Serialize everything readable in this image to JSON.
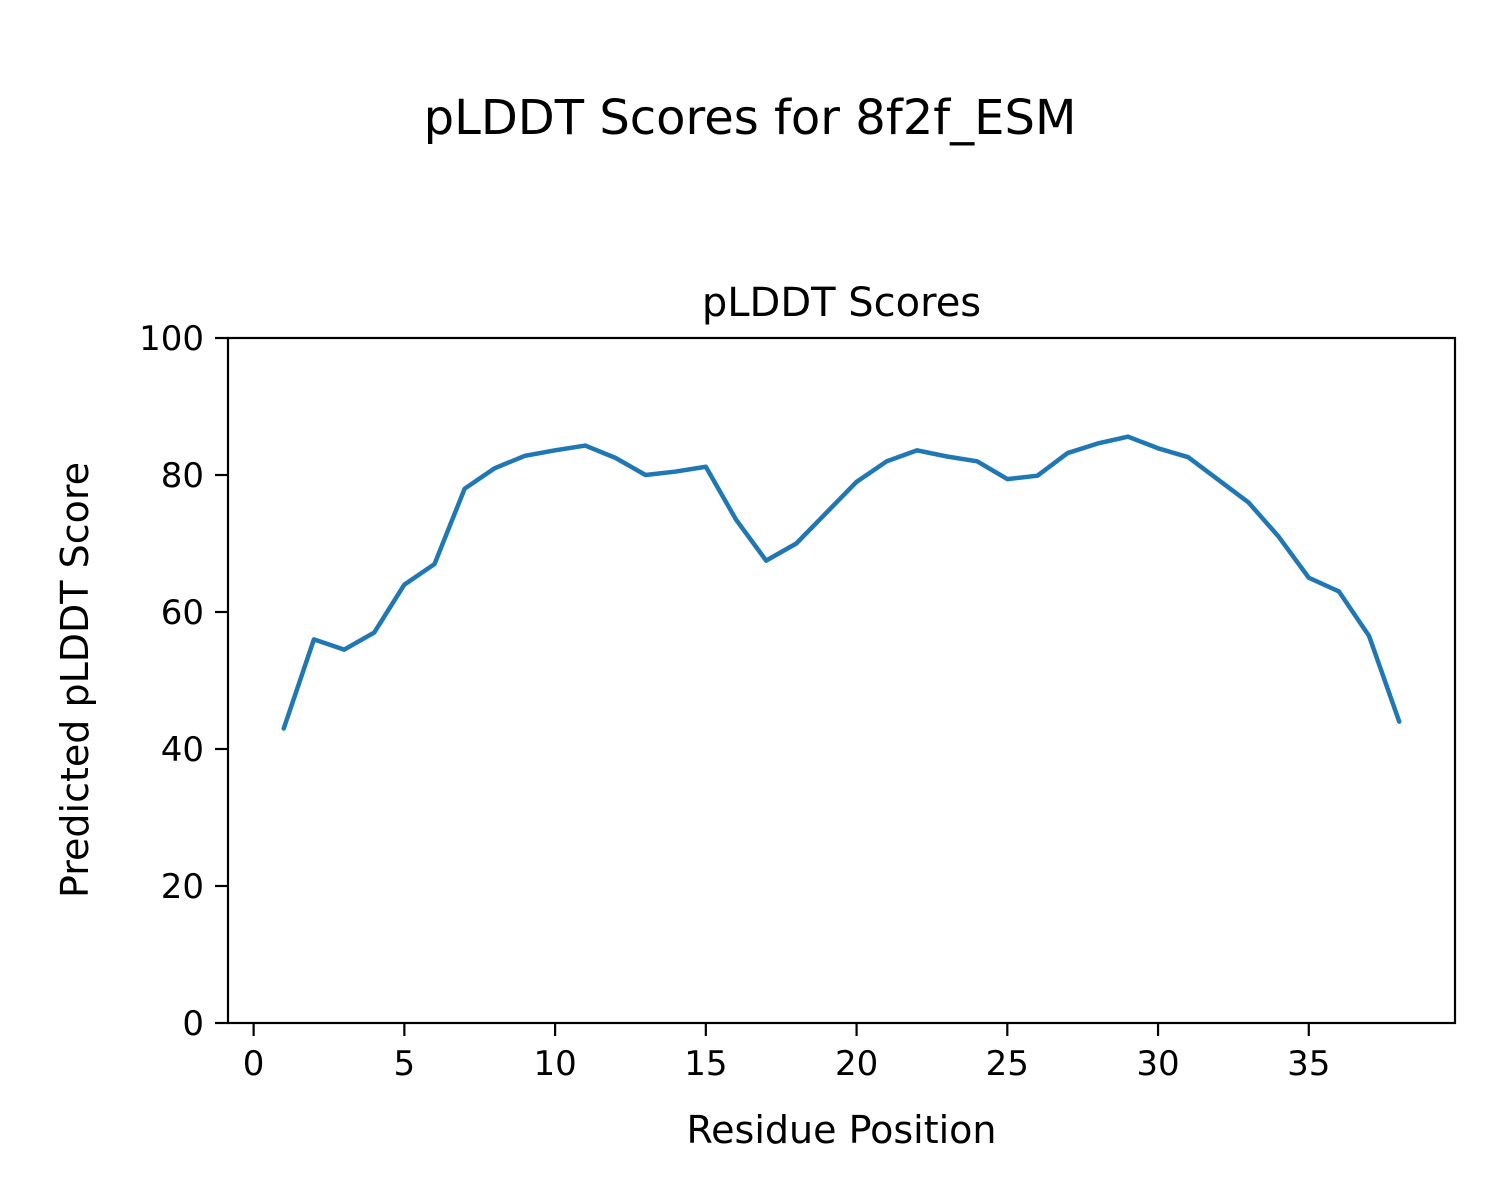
{
  "figure": {
    "suptitle": "pLDDT Scores for 8f2f_ESM"
  },
  "chart_data": {
    "type": "line",
    "title": "pLDDT Scores",
    "xlabel": "Residue Position",
    "ylabel": "Predicted pLDDT Score",
    "x": [
      1,
      2,
      3,
      4,
      5,
      6,
      7,
      8,
      9,
      10,
      11,
      12,
      13,
      14,
      15,
      16,
      17,
      18,
      19,
      20,
      21,
      22,
      23,
      24,
      25,
      26,
      27,
      28,
      29,
      30,
      31,
      32,
      33,
      34,
      35,
      36,
      37,
      38
    ],
    "series": [
      {
        "name": "pLDDT",
        "values": [
          43,
          56,
          54.5,
          57,
          64,
          67,
          78,
          81,
          82.8,
          83.6,
          84.3,
          82.5,
          80,
          80.5,
          81.2,
          73.5,
          67.5,
          70,
          74.5,
          79,
          82,
          83.6,
          82.7,
          82,
          79.4,
          79.9,
          83.2,
          84.6,
          85.6,
          83.9,
          82.6,
          79.3,
          76,
          71,
          65,
          63,
          56.5,
          44
        ]
      }
    ],
    "xlim": [
      -0.85,
      39.85
    ],
    "ylim": [
      0,
      100
    ],
    "xticks": [
      0,
      5,
      10,
      15,
      20,
      25,
      30,
      35
    ],
    "yticks": [
      0,
      20,
      40,
      60,
      80,
      100
    ],
    "line_color": "#1f77b4",
    "line_width": 4.5,
    "axis_color": "#000000",
    "grid": false,
    "legend": "none"
  }
}
